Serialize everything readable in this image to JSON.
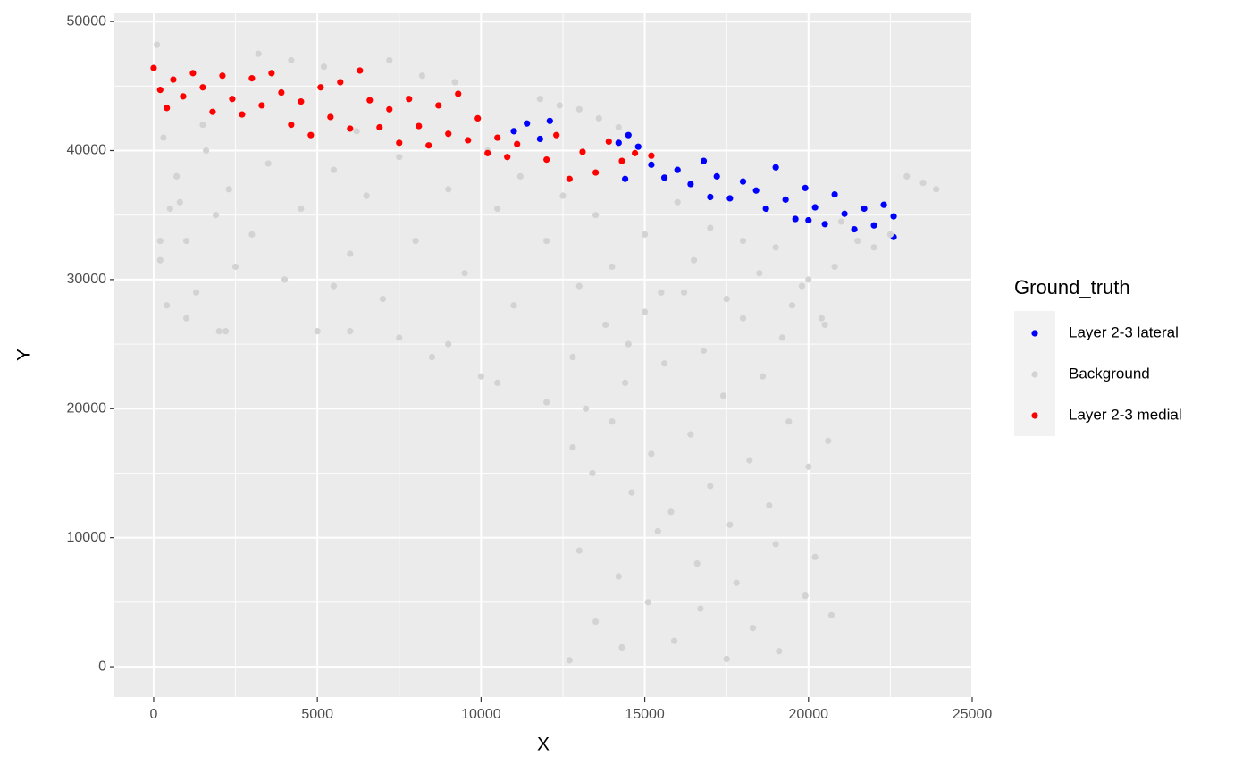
{
  "chart_data": {
    "type": "scatter",
    "x_label": "X",
    "y_label": "Y",
    "legend_title": "Ground_truth",
    "legend": "right",
    "grid": true,
    "xlim": [
      -1200,
      25000
    ],
    "ylim": [
      -2350,
      50700
    ],
    "xticks": [
      0,
      5000,
      10000,
      15000,
      20000,
      25000
    ],
    "yticks": [
      0,
      10000,
      20000,
      30000,
      40000,
      50000
    ],
    "x_minor_grid": [
      2500,
      7500,
      12500,
      17500,
      22500
    ],
    "y_minor_grid": [
      5000,
      15000,
      25000,
      35000,
      45000
    ],
    "series": [
      {
        "name": "Layer 2-3 lateral",
        "color": "#0000ff",
        "x": [
          11000,
          11400,
          11800,
          12100,
          14200,
          14500,
          14800,
          15200,
          15600,
          16000,
          16400,
          16800,
          17200,
          17600,
          18000,
          18400,
          18700,
          19000,
          19300,
          19600,
          19900,
          20200,
          20500,
          20800,
          21100,
          21400,
          21700,
          22000,
          22300,
          22600,
          22600,
          14400,
          17000,
          20000
        ],
        "values": [
          41500,
          42100,
          40900,
          42300,
          40600,
          41200,
          40300,
          38900,
          37900,
          38500,
          37400,
          39200,
          38000,
          36300,
          37600,
          36900,
          35500,
          38700,
          36200,
          34700,
          37100,
          35600,
          34300,
          36600,
          35100,
          33900,
          35500,
          34200,
          35800,
          34900,
          33300,
          37800,
          36400,
          34600
        ]
      },
      {
        "name": "Background",
        "color": "#d3d3d3",
        "x": [
          100,
          300,
          500,
          200,
          400,
          700,
          1000,
          1300,
          1600,
          1900,
          2200,
          2500,
          800,
          1500,
          2300,
          3000,
          3500,
          4000,
          4500,
          5000,
          5500,
          6000,
          6500,
          7000,
          7500,
          8000,
          8500,
          9000,
          9500,
          10000,
          10500,
          11000,
          3200,
          4200,
          5200,
          6200,
          7200,
          8200,
          9200,
          10200,
          11200,
          12000,
          12500,
          13000,
          13500,
          14000,
          14500,
          15000,
          15500,
          16000,
          16500,
          17000,
          17500,
          18000,
          18500,
          19000,
          19500,
          20000,
          20500,
          21000,
          21500,
          22000,
          22500,
          23000,
          23500,
          23900,
          200,
          1000,
          2000,
          11800,
          12400,
          13000,
          13600,
          14200,
          12800,
          13200,
          13800,
          14400,
          15000,
          15600,
          16200,
          16800,
          17400,
          18000,
          18600,
          19200,
          19800,
          20400,
          20800,
          12800,
          13400,
          14000,
          14600,
          15200,
          15800,
          16400,
          17000,
          17600,
          18200,
          18800,
          19400,
          20000,
          20600,
          13000,
          14200,
          15400,
          16600,
          17800,
          19000,
          20200,
          12700,
          13500,
          14300,
          15100,
          15900,
          16700,
          17500,
          18300,
          19100,
          19900,
          20700,
          6000,
          7500,
          9000,
          10500,
          12000,
          4000,
          5500
        ],
        "values": [
          48200,
          41000,
          35500,
          31500,
          28000,
          38000,
          33000,
          29000,
          40000,
          35000,
          26000,
          31000,
          36000,
          42000,
          37000,
          33500,
          39000,
          30000,
          35500,
          26000,
          38500,
          32000,
          36500,
          28500,
          39500,
          33000,
          24000,
          37000,
          30500,
          22500,
          35500,
          28000,
          47500,
          47000,
          46500,
          41500,
          47000,
          45800,
          45300,
          40000,
          38000,
          33000,
          36500,
          29500,
          35000,
          31000,
          25000,
          33500,
          29000,
          36000,
          31500,
          34000,
          28500,
          33000,
          30500,
          32500,
          28000,
          30000,
          26500,
          34500,
          33000,
          32500,
          33500,
          38000,
          37500,
          37000,
          33000,
          27000,
          26000,
          44000,
          43500,
          43200,
          42500,
          41800,
          24000,
          20000,
          26500,
          22000,
          27500,
          23500,
          29000,
          24500,
          21000,
          27000,
          22500,
          25500,
          29500,
          27000,
          31000,
          17000,
          15000,
          19000,
          13500,
          16500,
          12000,
          18000,
          14000,
          11000,
          16000,
          12500,
          19000,
          15500,
          17500,
          9000,
          7000,
          10500,
          8000,
          6500,
          9500,
          8500,
          500,
          3500,
          1500,
          5000,
          2000,
          4500,
          600,
          3000,
          1200,
          5500,
          4000,
          26000,
          25500,
          25000,
          22000,
          20500,
          30000,
          29500
        ]
      },
      {
        "name": "Layer 2-3 medial",
        "color": "#ff0000",
        "x": [
          0,
          200,
          400,
          600,
          900,
          1200,
          1500,
          1800,
          2100,
          2400,
          2700,
          3000,
          3300,
          3600,
          3900,
          4200,
          4500,
          4800,
          5100,
          5400,
          5700,
          6000,
          6300,
          6600,
          6900,
          7200,
          7500,
          7800,
          8100,
          8400,
          8700,
          9000,
          9300,
          9600,
          9900,
          10200,
          10500,
          10800,
          11100,
          12000,
          12300,
          12700,
          13100,
          13500,
          13900,
          14300,
          14700,
          15200
        ],
        "values": [
          46400,
          44700,
          43300,
          45500,
          44200,
          46000,
          44900,
          43000,
          45800,
          44000,
          42800,
          45600,
          43500,
          46000,
          44500,
          42000,
          43800,
          41200,
          44900,
          42600,
          45300,
          41700,
          46200,
          43900,
          41800,
          43200,
          40600,
          44000,
          41900,
          40400,
          43500,
          41300,
          44400,
          40800,
          42500,
          39800,
          41000,
          39500,
          40500,
          39300,
          41200,
          37800,
          39900,
          38300,
          40700,
          39200,
          39800,
          39600
        ]
      }
    ]
  }
}
